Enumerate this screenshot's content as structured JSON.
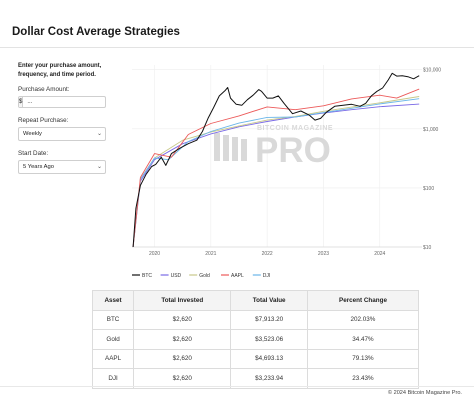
{
  "page": {
    "title": "Dollar Cost Average Strategies"
  },
  "form": {
    "intro": "Enter your purchase amount, frequency, and time period.",
    "amount_label": "Purchase Amount:",
    "currency_symbol": "$",
    "amount_value": "...",
    "repeat_label": "Repeat Purchase:",
    "repeat_value": "Weekly",
    "start_label": "Start Date:",
    "start_value": "5 Years Ago"
  },
  "watermark": {
    "top": "BITCOIN MAGAZINE",
    "main": "PRO"
  },
  "colors": {
    "btc": "#111111",
    "usd": "#7a6ae6",
    "gold": "#c9c98a",
    "aapl": "#ec5a5a",
    "dji": "#6ab6e8",
    "grid": "#eeeeee",
    "watermark": "#d9d9d9"
  },
  "chart_data": {
    "type": "line",
    "title": "",
    "xlabel": "",
    "ylabel": "",
    "x_ticks": [
      "2020",
      "2021",
      "2022",
      "2023",
      "2024"
    ],
    "y_scale": "log",
    "y_ticks": [
      "$10",
      "$100",
      "$1,000",
      "$10,000"
    ],
    "ylim": [
      10,
      12000
    ],
    "xlim": [
      2019.6,
      2024.75
    ],
    "legend": [
      "BTC",
      "USD",
      "Gold",
      "AAPL",
      "DJI"
    ],
    "legend_position": "bottom",
    "series": [
      {
        "name": "BTC",
        "key": "btc",
        "points": [
          [
            2019.62,
            10
          ],
          [
            2019.67,
            45
          ],
          [
            2019.75,
            110
          ],
          [
            2019.85,
            170
          ],
          [
            2019.95,
            230
          ],
          [
            2020.02,
            250
          ],
          [
            2020.12,
            330
          ],
          [
            2020.2,
            240
          ],
          [
            2020.3,
            380
          ],
          [
            2020.45,
            470
          ],
          [
            2020.6,
            560
          ],
          [
            2020.75,
            640
          ],
          [
            2020.85,
            900
          ],
          [
            2020.95,
            1500
          ],
          [
            2021.05,
            2300
          ],
          [
            2021.15,
            3600
          ],
          [
            2021.25,
            4400
          ],
          [
            2021.3,
            5000
          ],
          [
            2021.35,
            3300
          ],
          [
            2021.45,
            2600
          ],
          [
            2021.55,
            2500
          ],
          [
            2021.65,
            3100
          ],
          [
            2021.75,
            3700
          ],
          [
            2021.85,
            4600
          ],
          [
            2021.9,
            4300
          ],
          [
            2022.0,
            3300
          ],
          [
            2022.1,
            3300
          ],
          [
            2022.2,
            3600
          ],
          [
            2022.3,
            2700
          ],
          [
            2022.45,
            1800
          ],
          [
            2022.6,
            2000
          ],
          [
            2022.75,
            1700
          ],
          [
            2022.85,
            1400
          ],
          [
            2022.95,
            1500
          ],
          [
            2023.05,
            1900
          ],
          [
            2023.2,
            2400
          ],
          [
            2023.35,
            2500
          ],
          [
            2023.5,
            2600
          ],
          [
            2023.65,
            2400
          ],
          [
            2023.75,
            2700
          ],
          [
            2023.85,
            3600
          ],
          [
            2023.95,
            4300
          ],
          [
            2024.05,
            4900
          ],
          [
            2024.15,
            6700
          ],
          [
            2024.22,
            8700
          ],
          [
            2024.3,
            7800
          ],
          [
            2024.4,
            7900
          ],
          [
            2024.5,
            7600
          ],
          [
            2024.6,
            7000
          ],
          [
            2024.7,
            7913
          ]
        ]
      },
      {
        "name": "USD",
        "key": "usd",
        "points": [
          [
            2019.62,
            10
          ],
          [
            2019.75,
            130
          ],
          [
            2020.0,
            300
          ],
          [
            2020.5,
            560
          ],
          [
            2021.0,
            820
          ],
          [
            2021.5,
            1080
          ],
          [
            2022.0,
            1330
          ],
          [
            2022.5,
            1590
          ],
          [
            2023.0,
            1840
          ],
          [
            2023.5,
            2100
          ],
          [
            2024.0,
            2360
          ],
          [
            2024.7,
            2620
          ]
        ]
      },
      {
        "name": "Gold",
        "key": "gold",
        "points": [
          [
            2019.62,
            10
          ],
          [
            2019.75,
            140
          ],
          [
            2020.0,
            320
          ],
          [
            2020.5,
            640
          ],
          [
            2021.0,
            880
          ],
          [
            2021.5,
            1120
          ],
          [
            2022.0,
            1400
          ],
          [
            2022.5,
            1620
          ],
          [
            2023.0,
            1980
          ],
          [
            2023.5,
            2330
          ],
          [
            2024.0,
            2750
          ],
          [
            2024.7,
            3523
          ]
        ]
      },
      {
        "name": "AAPL",
        "key": "aapl",
        "points": [
          [
            2019.62,
            10
          ],
          [
            2019.75,
            150
          ],
          [
            2020.0,
            380
          ],
          [
            2020.3,
            330
          ],
          [
            2020.6,
            800
          ],
          [
            2021.0,
            1230
          ],
          [
            2021.5,
            1650
          ],
          [
            2022.0,
            2350
          ],
          [
            2022.5,
            2100
          ],
          [
            2023.0,
            2450
          ],
          [
            2023.5,
            3200
          ],
          [
            2024.0,
            3700
          ],
          [
            2024.3,
            3300
          ],
          [
            2024.7,
            4693
          ]
        ]
      },
      {
        "name": "DJI",
        "key": "dji",
        "points": [
          [
            2019.62,
            10
          ],
          [
            2019.75,
            140
          ],
          [
            2020.0,
            320
          ],
          [
            2020.25,
            300
          ],
          [
            2020.6,
            610
          ],
          [
            2021.0,
            900
          ],
          [
            2021.5,
            1250
          ],
          [
            2022.0,
            1560
          ],
          [
            2022.5,
            1580
          ],
          [
            2023.0,
            1880
          ],
          [
            2023.5,
            2220
          ],
          [
            2024.0,
            2640
          ],
          [
            2024.7,
            3233
          ]
        ]
      }
    ]
  },
  "table": {
    "headers": [
      "Asset",
      "Total Invested",
      "Total Value",
      "Percent Change"
    ],
    "rows": [
      [
        "BTC",
        "$2,620",
        "$7,913.20",
        "202.03%"
      ],
      [
        "Gold",
        "$2,620",
        "$3,523.06",
        "34.47%"
      ],
      [
        "AAPL",
        "$2,620",
        "$4,693.13",
        "79.13%"
      ],
      [
        "DJI",
        "$2,620",
        "$3,233.94",
        "23.43%"
      ]
    ]
  },
  "footer": {
    "copyright": "© 2024 Bitcoin Magazine Pro."
  }
}
